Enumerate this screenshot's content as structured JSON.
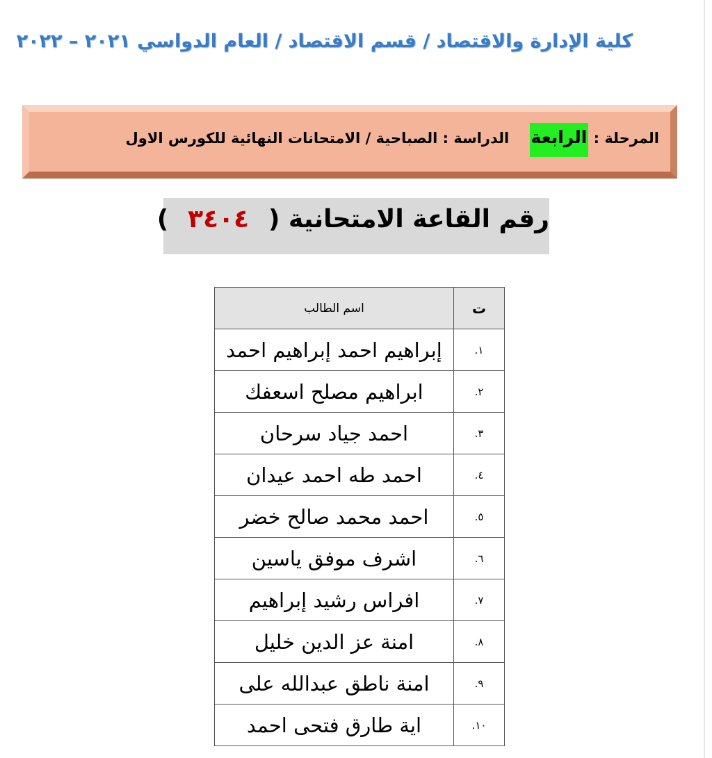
{
  "header": {
    "title": "كلية الإدارة والاقتصاد / قسم الاقتصاد / العام الدواسي ٢٠٢١ – ٢٠٢٢"
  },
  "banner": {
    "stage_label": "المرحلة :",
    "stage_value": "الرابعة",
    "study_text": "الدراسة : الصباحية / الامتحانات النهائية للكورس الاول",
    "highlight_color": "#22ee22"
  },
  "room": {
    "label": "رقم القاعة الامتحانية",
    "open": "(",
    "number": "٣٤٠٤",
    "close": ")",
    "number_color": "#c00000"
  },
  "table": {
    "headers": {
      "num": "ت",
      "name": "اسم الطالب"
    },
    "rows": [
      {
        "num": "١.",
        "name": "إبراهيم احمد إبراهيم احمد"
      },
      {
        "num": "٢.",
        "name": "ابراهيم مصلح اسعفك"
      },
      {
        "num": "٣.",
        "name": "احمد جياد سرحان"
      },
      {
        "num": "٤.",
        "name": "احمد طه احمد عيدان"
      },
      {
        "num": "٥.",
        "name": "احمد محمد صالح خضر"
      },
      {
        "num": "٦.",
        "name": "اشرف موفق ياسين"
      },
      {
        "num": "٧.",
        "name": "افراس رشيد إبراهيم"
      },
      {
        "num": "٨.",
        "name": "امنة عز الدين خليل"
      },
      {
        "num": "٩.",
        "name": "امنة ناطق عبدالله على"
      },
      {
        "num": "١٠.",
        "name": "اية طارق فتحى احمد"
      }
    ]
  }
}
